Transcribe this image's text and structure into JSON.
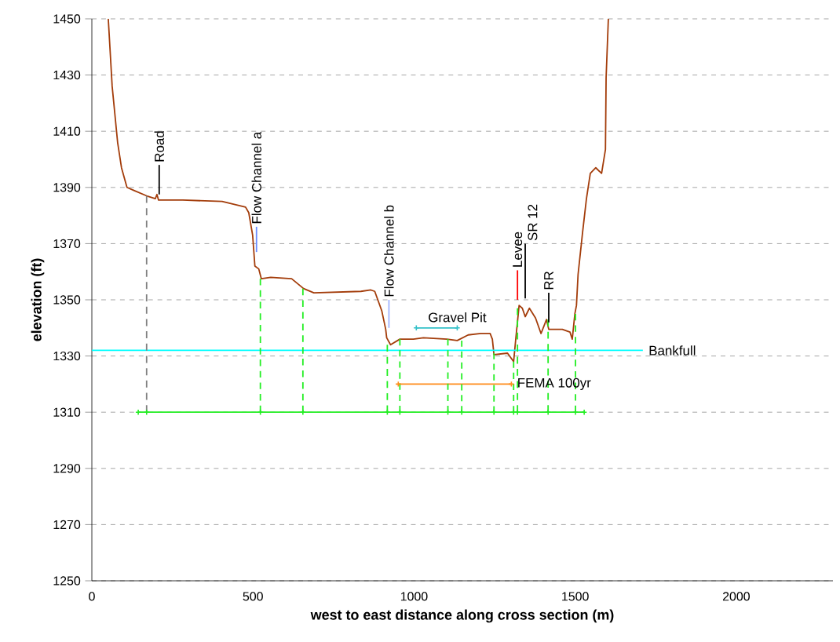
{
  "chart_data": {
    "type": "line",
    "xlabel": "west to east distance along cross section (m)",
    "ylabel": "elevation (ft)",
    "xlim": [
      0,
      2300
    ],
    "ylim": [
      1250,
      1450
    ],
    "xticks": [
      0,
      500,
      1000,
      1500,
      2000
    ],
    "yticks": [
      1250,
      1270,
      1290,
      1310,
      1330,
      1350,
      1370,
      1390,
      1410,
      1430,
      1450
    ],
    "grid": "y",
    "series": [
      {
        "color": "#a33c0a",
        "marker": "none",
        "line_style": "solid",
        "x": [
          51,
          56,
          63,
          80,
          92,
          109,
          129,
          170,
          197,
          202,
          207,
          282,
          404,
          477,
          487,
          499,
          506,
          518,
          526,
          555,
          620,
          657,
          689,
          835,
          866,
          878,
          900,
          912,
          915,
          927,
          956,
          998,
          1029,
          1102,
          1134,
          1168,
          1207,
          1236,
          1243,
          1248,
          1290,
          1309,
          1316,
          1326,
          1336,
          1345,
          1358,
          1377,
          1394,
          1411,
          1418,
          1460,
          1484,
          1491,
          1499,
          1504,
          1509,
          1523,
          1535,
          1547,
          1564,
          1582,
          1594,
          1596,
          1603
        ],
        "values": [
          1450,
          1440,
          1426,
          1406,
          1397,
          1390,
          1389,
          1387,
          1386,
          1387.5,
          1385.5,
          1385.5,
          1385,
          1383,
          1381,
          1373,
          1362,
          1361,
          1357.5,
          1358,
          1357.5,
          1354,
          1352.5,
          1353,
          1353.5,
          1353,
          1346,
          1339.5,
          1336.5,
          1334,
          1336,
          1336,
          1336.5,
          1336,
          1335.5,
          1337.5,
          1338,
          1338,
          1336,
          1330.5,
          1331,
          1328,
          1336.5,
          1348,
          1347,
          1344,
          1347,
          1343.5,
          1338,
          1343,
          1339.5,
          1339.5,
          1338.5,
          1336,
          1345,
          1348,
          1359,
          1374,
          1386,
          1395,
          1397,
          1395,
          1403.5,
          1429,
          1450
        ]
      },
      {
        "name": "Bankfull",
        "color": "#00ffff",
        "marker": "none",
        "line_style": "solid",
        "x": [
          0,
          1710
        ],
        "values": [
          1332,
          1332
        ]
      },
      {
        "name": "FEMA 100yr",
        "color": "#ff8c1a",
        "marker": "cross",
        "line_style": "solid",
        "x": [
          951,
          1302
        ],
        "values": [
          1320,
          1320
        ]
      },
      {
        "name": "Gravel Pit",
        "color": "#33c0c8",
        "marker": "cross",
        "line_style": "solid",
        "x": [
          1007,
          1134
        ],
        "values": [
          1340,
          1340
        ]
      },
      {
        "color": "#22ee22",
        "marker": "cross",
        "line_style": "solid",
        "x": [
          144,
          170,
          523,
          655,
          917,
          956,
          1105,
          1148,
          1248,
          1309,
          1321,
          1416,
          1501,
          1528
        ],
        "values": [
          1310,
          1310,
          1310,
          1310,
          1310,
          1310,
          1310,
          1310,
          1310,
          1310,
          1310,
          1310,
          1310,
          1310
        ]
      },
      {
        "color": "#808080",
        "marker": "none",
        "line_style": "dashed",
        "x": [
          170,
          170
        ],
        "values": [
          1310,
          1387
        ]
      },
      {
        "color": "#22ee22",
        "marker": "none",
        "line_style": "dashed",
        "x": [
          523,
          523
        ],
        "values": [
          1310,
          1357.5
        ]
      },
      {
        "color": "#22ee22",
        "marker": "none",
        "line_style": "dashed",
        "x": [
          655,
          655
        ],
        "values": [
          1310,
          1354
        ]
      },
      {
        "color": "#22ee22",
        "marker": "none",
        "line_style": "dashed",
        "x": [
          917,
          917
        ],
        "values": [
          1310,
          1334
        ]
      },
      {
        "color": "#22ee22",
        "marker": "none",
        "line_style": "dashed",
        "x": [
          956,
          956
        ],
        "values": [
          1310,
          1336
        ]
      },
      {
        "color": "#22ee22",
        "marker": "none",
        "line_style": "dashed",
        "x": [
          1105,
          1105
        ],
        "values": [
          1310,
          1336
        ]
      },
      {
        "color": "#22ee22",
        "marker": "none",
        "line_style": "dashed",
        "x": [
          1148,
          1148
        ],
        "values": [
          1310,
          1335.5
        ]
      },
      {
        "color": "#22ee22",
        "marker": "none",
        "line_style": "dashed",
        "x": [
          1248,
          1248
        ],
        "values": [
          1310,
          1331
        ]
      },
      {
        "color": "#22ee22",
        "marker": "none",
        "line_style": "dashed",
        "x": [
          1309,
          1309
        ],
        "values": [
          1310,
          1328
        ]
      },
      {
        "color": "#22ee22",
        "marker": "none",
        "line_style": "dashed",
        "x": [
          1321,
          1321
        ],
        "values": [
          1310,
          1347
        ]
      },
      {
        "color": "#22ee22",
        "marker": "none",
        "line_style": "dashed",
        "x": [
          1416,
          1416
        ],
        "values": [
          1310,
          1343
        ]
      },
      {
        "color": "#22ee22",
        "marker": "none",
        "line_style": "dashed",
        "x": [
          1501,
          1501
        ],
        "values": [
          1310,
          1345
        ]
      },
      {
        "name": "Road",
        "color": "#000000",
        "marker": "none",
        "line_style": "solid",
        "x": [
          209,
          209
        ],
        "values": [
          1387.5,
          1398
        ]
      },
      {
        "name": "Flow Channel a",
        "color": "#6a8cff",
        "marker": "none",
        "line_style": "solid",
        "x": [
          511,
          511
        ],
        "values": [
          1367,
          1376
        ]
      },
      {
        "name": "Flow Channel b",
        "color": "#a0b4ff",
        "marker": "none",
        "line_style": "solid",
        "x": [
          922,
          922
        ],
        "values": [
          1340,
          1350
        ]
      },
      {
        "name": "Levee",
        "color": "#ff0000",
        "marker": "none",
        "line_style": "solid",
        "x": [
          1321,
          1321
        ],
        "values": [
          1350,
          1360.5
        ]
      },
      {
        "name": "SR 12",
        "color": "#000000",
        "marker": "none",
        "line_style": "solid",
        "x": [
          1345,
          1345
        ],
        "values": [
          1350.5,
          1370
        ]
      },
      {
        "name": "RR",
        "color": "#000000",
        "marker": "none",
        "line_style": "solid",
        "x": [
          1418,
          1418
        ],
        "values": [
          1342,
          1352.5
        ]
      }
    ]
  }
}
